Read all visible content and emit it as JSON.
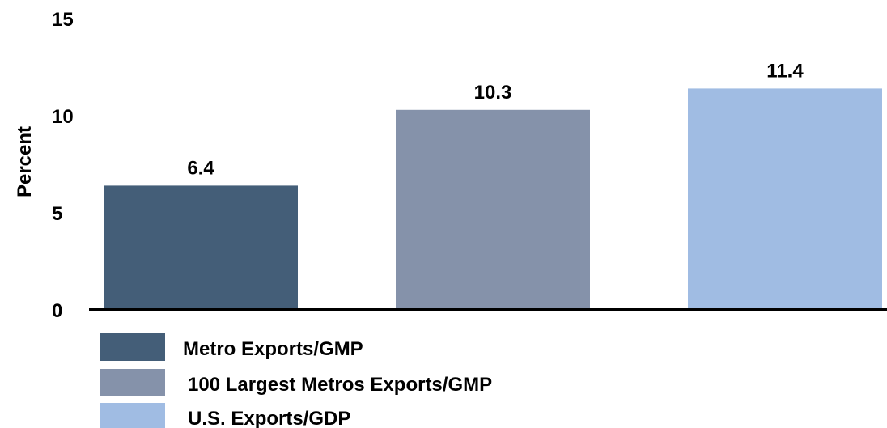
{
  "chart_data": {
    "type": "bar",
    "title": "",
    "xlabel": "",
    "ylabel": "Percent",
    "ylim": [
      0,
      15
    ],
    "yticks": [
      0,
      5,
      10,
      15
    ],
    "grid": false,
    "legend_position": "bottom-left",
    "categories": [
      "Metro Exports/GMP",
      "100 Largest Metros Exports/GMP",
      "U.S. Exports/GDP"
    ],
    "values": [
      6.4,
      10.3,
      11.4
    ],
    "value_labels": [
      "6.4",
      "10.3",
      "11.4"
    ],
    "colors": [
      "#445e78",
      "#8592aa",
      "#a0bce3"
    ],
    "axis_color": "#000000"
  }
}
